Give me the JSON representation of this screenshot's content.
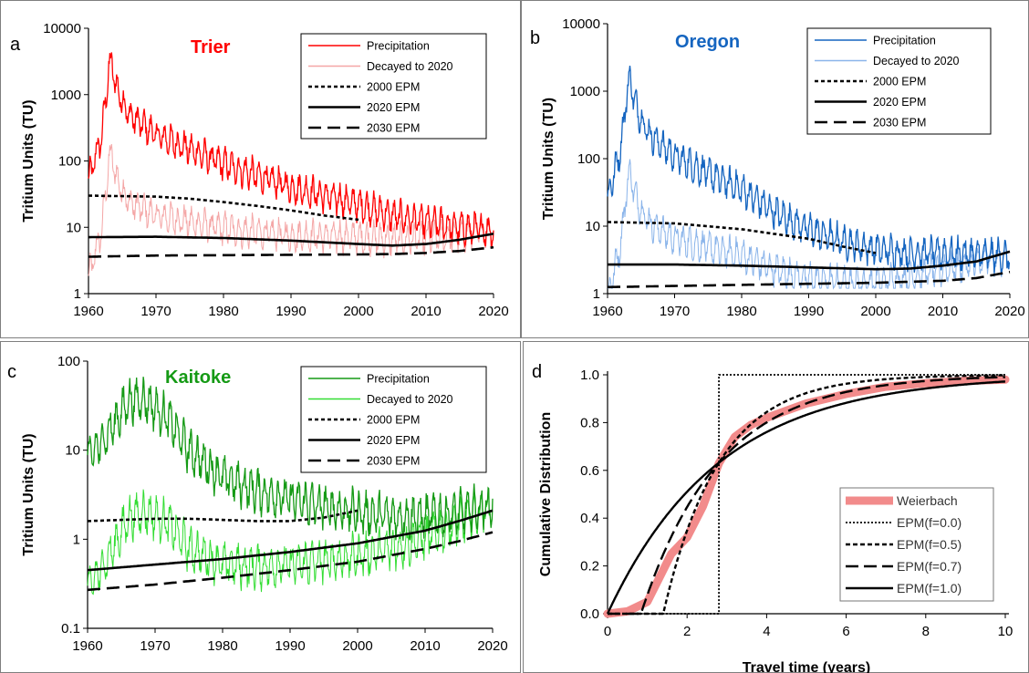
{
  "colors": {
    "trier_precip": "#ff0000",
    "trier_decay": "#f4a6a6",
    "oregon_precip": "#1565c0",
    "oregon_decay": "#8ab4ea",
    "kaitoke_precip": "#159a15",
    "kaitoke_decay": "#33dd33",
    "weierbach": "#f28b8b",
    "epm": "#000000"
  },
  "chart_data": [
    {
      "id": "a",
      "panel_letter": "a",
      "title": "Trier",
      "type": "line",
      "ylabel": "Tritium Units (TU)",
      "yscale": "log",
      "ylim": [
        1,
        10000
      ],
      "yticks": [
        "1",
        "10",
        "100",
        "1000",
        "10000"
      ],
      "xlim": [
        1960,
        2020
      ],
      "xticks": [
        "1960",
        "1970",
        "1980",
        "1990",
        "2000",
        "2010",
        "2020"
      ],
      "legend": [
        "Precipitation",
        "Decayed to 2020",
        "2000 EPM",
        "2020 EPM",
        "2030 EPM"
      ],
      "legend_position": "top-right",
      "precip_trend": {
        "x": [
          1960,
          1962,
          1963,
          1963.5,
          1964,
          1965,
          1966,
          1968,
          1970,
          1975,
          1980,
          1985,
          1990,
          1995,
          2000,
          2005,
          2010,
          2015,
          2020
        ],
        "y": [
          50,
          250,
          2400,
          3000,
          1400,
          800,
          500,
          350,
          250,
          150,
          90,
          60,
          40,
          30,
          22,
          15,
          12,
          10,
          9
        ]
      },
      "epm_2000": {
        "x": [
          1960,
          1970,
          1975,
          1980,
          1985,
          1990,
          1995,
          2000
        ],
        "y": [
          30,
          29,
          27,
          24,
          21,
          18,
          15,
          13
        ]
      },
      "epm_2020": {
        "x": [
          1960,
          1970,
          1980,
          1990,
          2000,
          2005,
          2010,
          2015,
          2020
        ],
        "y": [
          7.1,
          7.2,
          6.9,
          6.3,
          5.6,
          5.3,
          5.6,
          6.5,
          8
        ]
      },
      "epm_2030": {
        "x": [
          1960,
          1970,
          1980,
          1990,
          2000,
          2005,
          2010,
          2015,
          2020
        ],
        "y": [
          3.6,
          3.75,
          3.8,
          3.85,
          3.9,
          3.95,
          4.1,
          4.4,
          5.0
        ]
      }
    },
    {
      "id": "b",
      "panel_letter": "b",
      "title": "Oregon",
      "type": "line",
      "ylabel": "Tritium Units (TU)",
      "yscale": "log",
      "ylim": [
        1,
        10000
      ],
      "yticks": [
        "1",
        "10",
        "100",
        "1000",
        "10000"
      ],
      "xlim": [
        1960,
        2020
      ],
      "xticks": [
        "1960",
        "1970",
        "1980",
        "1990",
        "2000",
        "2010",
        "2020"
      ],
      "legend": [
        "Precipitation",
        "Decayed to 2020",
        "2000 EPM",
        "2020 EPM",
        "2030 EPM"
      ],
      "legend_position": "top-right",
      "precip_trend": {
        "x": [
          1960,
          1962,
          1963,
          1963.5,
          1964,
          1965,
          1966,
          1968,
          1970,
          1975,
          1980,
          1985,
          1990,
          1995,
          2000,
          2005,
          2010,
          2015,
          2020
        ],
        "y": [
          25,
          150,
          1200,
          1500,
          700,
          400,
          250,
          160,
          110,
          60,
          35,
          16,
          9,
          6,
          4.5,
          4,
          4,
          3.8,
          3.6
        ]
      },
      "epm_2000": {
        "x": [
          1960,
          1970,
          1980,
          1990,
          1995,
          2000
        ],
        "y": [
          11.5,
          11,
          9,
          6.5,
          5,
          4
        ]
      },
      "epm_2020": {
        "x": [
          1960,
          1970,
          1980,
          1990,
          2000,
          2005,
          2010,
          2015,
          2020
        ],
        "y": [
          2.7,
          2.7,
          2.6,
          2.45,
          2.3,
          2.35,
          2.6,
          3.0,
          4.2
        ]
      },
      "epm_2030": {
        "x": [
          1960,
          1970,
          1980,
          1990,
          2000,
          2005,
          2010,
          2015,
          2020
        ],
        "y": [
          1.25,
          1.3,
          1.35,
          1.4,
          1.45,
          1.5,
          1.55,
          1.7,
          2.1
        ]
      }
    },
    {
      "id": "c",
      "panel_letter": "c",
      "title": "Kaitoke",
      "type": "line",
      "ylabel": "Tritium Units (TU)",
      "yscale": "log",
      "ylim": [
        0.1,
        100
      ],
      "yticks": [
        "0.1",
        "1",
        "10",
        "100"
      ],
      "xlim": [
        1960,
        2020
      ],
      "xticks": [
        "1960",
        "1970",
        "1980",
        "1990",
        "2000",
        "2010",
        "2020"
      ],
      "legend": [
        "Precipitation",
        "Decayed to 2020",
        "2000 EPM",
        "2020 EPM",
        "2030 EPM"
      ],
      "legend_position": "top-right",
      "precip_trend": {
        "x": [
          1960,
          1962,
          1964,
          1966,
          1968,
          1970,
          1972,
          1975,
          1980,
          1985,
          1990,
          1995,
          2000,
          2005,
          2010,
          2015,
          2020
        ],
        "y": [
          8,
          12,
          20,
          35,
          38,
          30,
          22,
          10,
          5,
          3.5,
          2.8,
          2.3,
          2.0,
          1.8,
          1.8,
          2.0,
          2.4
        ]
      },
      "epm_2000": {
        "x": [
          1960,
          1965,
          1970,
          1975,
          1980,
          1985,
          1990,
          1995,
          2000
        ],
        "y": [
          1.6,
          1.65,
          1.7,
          1.7,
          1.65,
          1.6,
          1.6,
          1.75,
          2.1
        ]
      },
      "epm_2020": {
        "x": [
          1960,
          1970,
          1980,
          1990,
          2000,
          2010,
          2015,
          2020
        ],
        "y": [
          0.45,
          0.52,
          0.6,
          0.72,
          0.9,
          1.25,
          1.6,
          2.1
        ]
      },
      "epm_2030": {
        "x": [
          1960,
          1970,
          1980,
          1990,
          2000,
          2010,
          2015,
          2020
        ],
        "y": [
          0.27,
          0.31,
          0.37,
          0.45,
          0.56,
          0.78,
          0.95,
          1.2
        ]
      }
    },
    {
      "id": "d",
      "panel_letter": "d",
      "type": "line",
      "xlabel": "Travel time (years)",
      "ylabel": "Cumulative Distribution",
      "xlim": [
        0,
        10
      ],
      "ylim": [
        0,
        1
      ],
      "xticks": [
        "0",
        "2",
        "4",
        "6",
        "8",
        "10"
      ],
      "yticks": [
        "0.0",
        "0.2",
        "0.4",
        "0.6",
        "0.8",
        "1.0"
      ],
      "legend": [
        "Weierbach",
        "EPM(f=0.0)",
        "EPM(f=0.5)",
        "EPM(f=0.7)",
        "EPM(f=1.0)"
      ],
      "legend_position": "bottom-right",
      "mean_travel_time": 2.8,
      "weierbach": {
        "x": [
          0,
          0.5,
          1.0,
          1.3,
          1.6,
          2.0,
          2.4,
          2.8,
          3.2,
          3.6,
          4.0,
          5.0,
          6.0,
          7.0,
          8.0,
          9.0,
          10.0
        ],
        "y": [
          0,
          0.01,
          0.05,
          0.15,
          0.25,
          0.32,
          0.45,
          0.63,
          0.74,
          0.79,
          0.82,
          0.88,
          0.92,
          0.95,
          0.965,
          0.975,
          0.98
        ]
      }
    }
  ]
}
